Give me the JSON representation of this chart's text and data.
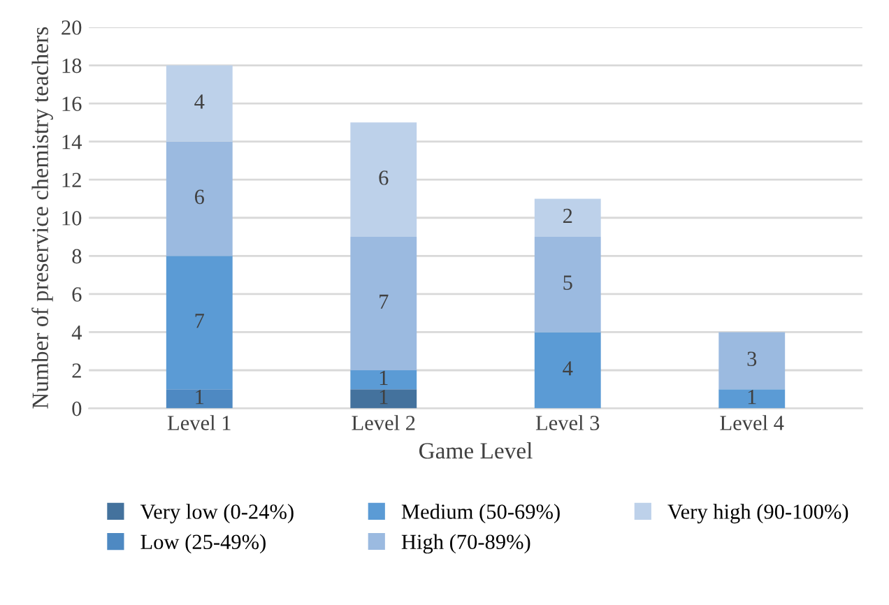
{
  "chart_data": {
    "type": "bar",
    "stacked": true,
    "xlabel": "Game Level",
    "ylabel": "Number of preservice chemistry teachers",
    "categories": [
      "Level 1",
      "Level 2",
      "Level 3",
      "Level 4"
    ],
    "series": [
      {
        "name": "Very low (0-24%)",
        "color": "#44729d",
        "values": [
          null,
          1,
          null,
          null
        ]
      },
      {
        "name": "Low (25-49%)",
        "color": "#4e89c2",
        "values": [
          1,
          null,
          null,
          null
        ]
      },
      {
        "name": "Medium (50-69%)",
        "color": "#5b9bd5",
        "values": [
          7,
          1,
          4,
          1
        ]
      },
      {
        "name": "High (70-89%)",
        "color": "#9bbae0",
        "values": [
          6,
          7,
          5,
          3
        ]
      },
      {
        "name": "Very high (90-100%)",
        "color": "#bdd1ea",
        "values": [
          4,
          6,
          2,
          null
        ]
      }
    ],
    "ylim": [
      0,
      20
    ],
    "yticks": [
      0,
      2,
      4,
      6,
      8,
      10,
      12,
      14,
      16,
      18,
      20
    ],
    "grid": "y",
    "legend": "bottom",
    "data_labels": true
  }
}
